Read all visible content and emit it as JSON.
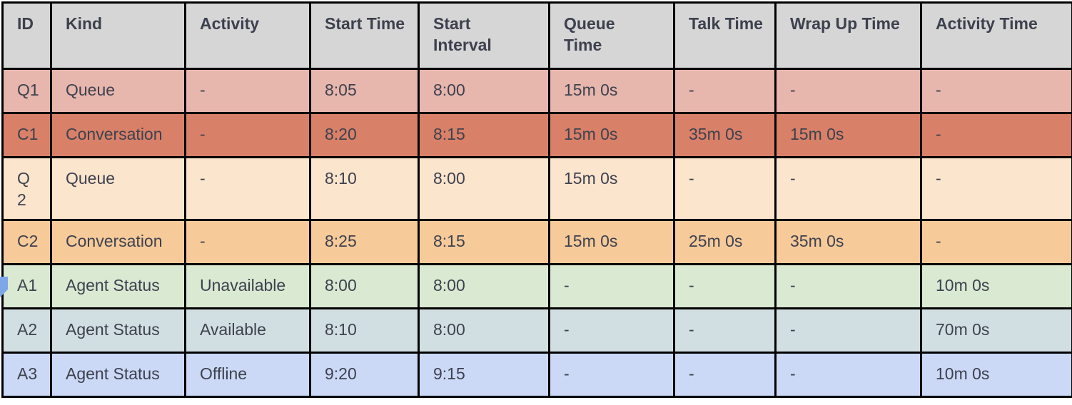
{
  "colors": {
    "header_bg": "#d6d6d6",
    "border": "#000000",
    "text": "#3d414e",
    "marker_blue": "#7da7e8",
    "page_bg": "#ffffff"
  },
  "table": {
    "headers": [
      "ID",
      "Kind",
      "Activity",
      "Start Time",
      "Start Interval",
      "Queue Time",
      "Talk Time",
      "Wrap Up Time",
      "Activity Time"
    ],
    "rows": [
      {
        "cells": [
          "Q1",
          "Queue",
          "-",
          "8:05",
          "8:00",
          "15m 0s",
          "-",
          "-",
          "-"
        ],
        "color": "#e7b6ad"
      },
      {
        "cells": [
          "C1",
          "Conversation",
          "-",
          "8:20",
          "8:15",
          "15m 0s",
          "35m 0s",
          "15m 0s",
          "-"
        ],
        "color": "#d98068"
      },
      {
        "cells": [
          "Q 2",
          "Queue",
          "-",
          "8:10",
          "8:00",
          "15m 0s",
          "-",
          "-",
          "-"
        ],
        "color": "#fce5cd"
      },
      {
        "cells": [
          "C2",
          "Conversation",
          "-",
          "8:25",
          "8:15",
          "15m 0s",
          "25m 0s",
          "35m 0s",
          "-"
        ],
        "color": "#f7ca9a"
      },
      {
        "cells": [
          "A1",
          "Agent Status",
          "Unavailable",
          "8:00",
          "8:00",
          "-",
          "-",
          "-",
          "10m 0s"
        ],
        "color": "#d9e9d2",
        "marker": true
      },
      {
        "cells": [
          "A2",
          "Agent Status",
          "Available",
          "8:10",
          "8:00",
          "-",
          "-",
          "-",
          "70m 0s"
        ],
        "color": "#d2dfe2"
      },
      {
        "cells": [
          "A3",
          "Agent Status",
          "Offline",
          "9:20",
          "9:15",
          "-",
          "-",
          "-",
          "10m 0s"
        ],
        "color": "#cbd9f7"
      }
    ]
  }
}
